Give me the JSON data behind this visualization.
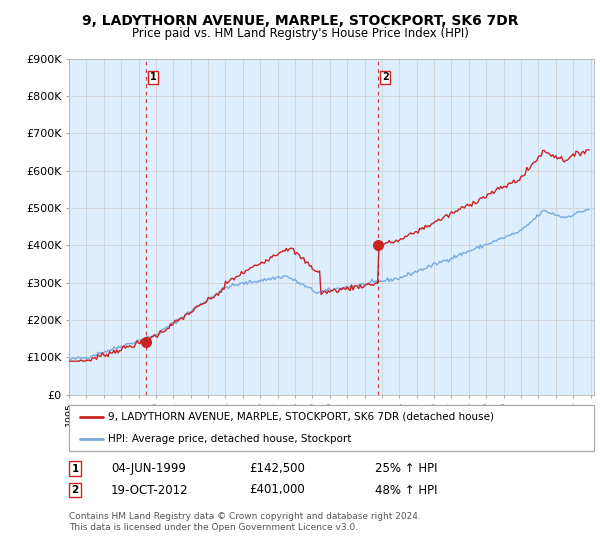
{
  "title": "9, LADYTHORN AVENUE, MARPLE, STOCKPORT, SK6 7DR",
  "subtitle": "Price paid vs. HM Land Registry's House Price Index (HPI)",
  "ylim": [
    0,
    900000
  ],
  "yticks": [
    0,
    100000,
    200000,
    300000,
    400000,
    500000,
    600000,
    700000,
    800000,
    900000
  ],
  "ytick_labels": [
    "£0",
    "£100K",
    "£200K",
    "£300K",
    "£400K",
    "£500K",
    "£600K",
    "£700K",
    "£800K",
    "£900K"
  ],
  "hpi_color": "#7aaadd",
  "property_color": "#cc2222",
  "vline_color": "#cc2222",
  "bg_color": "#ddeeff",
  "grid_color": "#cccccc",
  "sale1_year": 1999.43,
  "sale1_price": 142500,
  "sale2_year": 2012.8,
  "sale2_price": 401000,
  "legend_property": "9, LADYTHORN AVENUE, MARPLE, STOCKPORT, SK6 7DR (detached house)",
  "legend_hpi": "HPI: Average price, detached house, Stockport",
  "sale1_date": "04-JUN-1999",
  "sale1_price_str": "£142,500",
  "sale1_pct": "25% ↑ HPI",
  "sale2_date": "19-OCT-2012",
  "sale2_price_str": "£401,000",
  "sale2_pct": "48% ↑ HPI",
  "footnote": "Contains HM Land Registry data © Crown copyright and database right 2024.\nThis data is licensed under the Open Government Licence v3.0."
}
